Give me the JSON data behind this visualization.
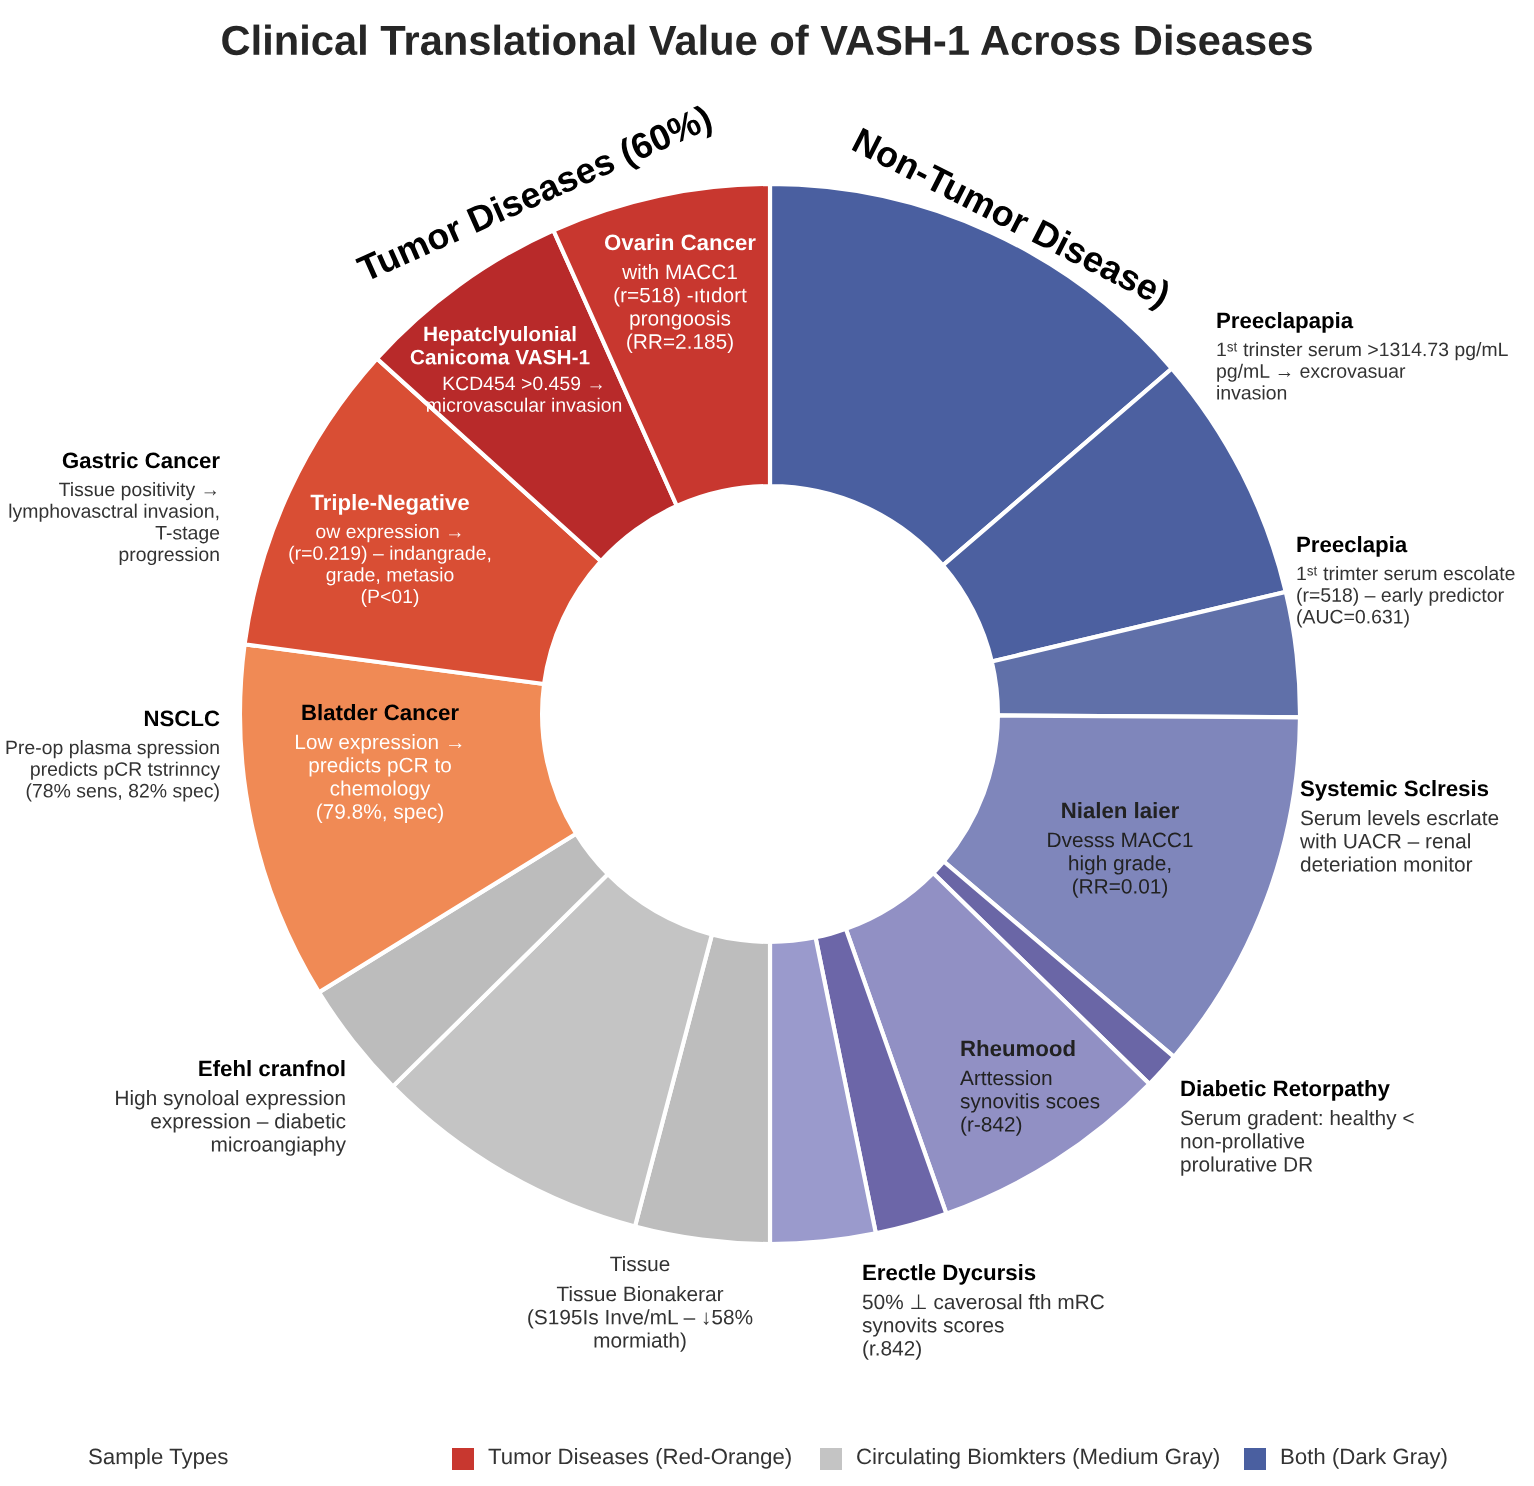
{
  "chart_data": {
    "type": "donut",
    "title": "Clinical Translational Value of VASH-1 Across Diseases",
    "categories": [
      null,
      null,
      null,
      null,
      null,
      null,
      null,
      null,
      null,
      null,
      null,
      null,
      null,
      null,
      null
    ],
    "values": [
      13.7,
      7.6,
      3.8,
      11.1,
      1.1,
      7.3,
      2.2,
      3.2,
      4.1,
      8.5,
      3.6,
      10.9,
      9.6,
      6.6,
      6.7
    ],
    "colors": [
      "#4a5fa0",
      "#4c60a0",
      "#6070a9",
      "#7f86bb",
      "#6a66a6",
      "#9190c4",
      "#6c66a8",
      "#9a9acc",
      "#bdbdbd",
      "#c4c4c4",
      "#bcbcbc",
      "#f08a55",
      "#d94e34",
      "#b82a2a",
      "#c8372f"
    ],
    "annotations": [
      "Tumor Diseases (60%)",
      "Non-Tumor Disease)",
      "Ovarin Cancer",
      "with MACC1\n(r=518) -ıtıdort\nprongoosis\n(RR=2.185)",
      "Hepatclyulonial\nCanicoma VASH-1",
      "KCD454 >0.459 →\nmicrovascular invasion",
      "Triple-Negative",
      "ow expression →\n(r=0.219) – indangrade,\ngrade, metasio\n(P<01)",
      "Blatder Cancer",
      "Low expression →\npredicts pCR to\nchemology\n(79.8%, spec)",
      "Gastric Cancer",
      "Tissue positivity →\nlymphovasctral invasion,\nT-stage\nprogression",
      "NSCLC",
      "Pre-op plasma spression\npredicts pCR tstrinncy\n(78% sens, 82% spec)",
      "Efehl cranfnol",
      "High synoloal expression\nexpression – diabetic\nmicroangiaphy",
      "Tissue",
      "Tissue Bionakerar\n(S195Is Inve/mL – ↓58%\nmormiath)",
      "Erectle Dycursis",
      "50% ⊥ caverosal fth mRC\nsynovits scores\n(r.842)",
      "Rheumood",
      "Arttession\nsynovitis scoes\n(r-842)",
      "Diabetic Retorpathy",
      "Serum gradent: healthy <\nnon-prollative\nprolurative DR",
      "Nialen laier",
      "Dvesss MACC1\nhigh grade,\n(RR=0.01)",
      "Systemic Sclresis",
      "Serum levels escrlate\nwith UACR – renal\ndeteriation monitor",
      "Preeclapapia",
      "1ˢᵗ trinster serum >1314.73 pg/mL\npg/mL → excrovasuar\ninvasion",
      "Preeclapia",
      "1ˢᵗ trimter serum escolate\n(r=518) – early predictor\n(AUC=0.631)",
      "Sample Types",
      "Tumor Diseases (Red-Orange)",
      "Circulating Biomkters (Medium Gray)",
      "Both (Dark Gray)"
    ]
  }
}
